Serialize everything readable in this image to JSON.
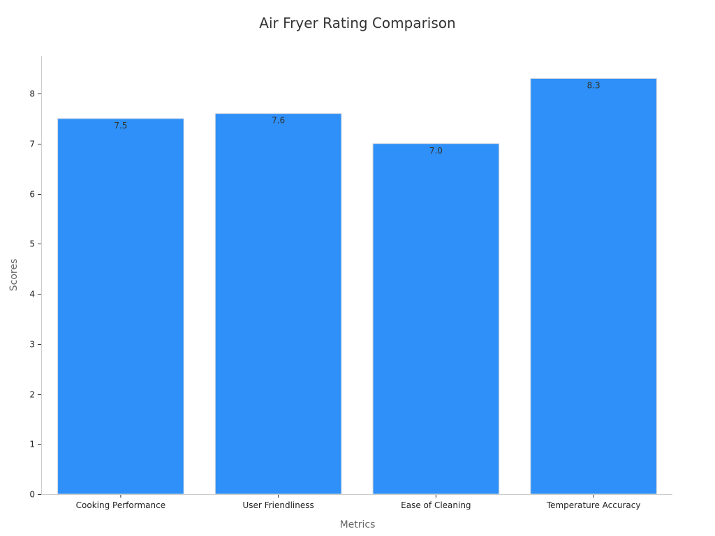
{
  "chart_data": {
    "type": "bar",
    "title": "Air Fryer Rating Comparison",
    "xlabel": "Metrics",
    "ylabel": "Scores",
    "categories": [
      "Cooking Performance",
      "User Friendliness",
      "Ease of Cleaning",
      "Temperature Accuracy"
    ],
    "values": [
      7.5,
      7.6,
      7.0,
      8.3
    ],
    "value_labels": [
      "7.5",
      "7.6",
      "7.0",
      "8.3"
    ],
    "ylim": [
      0,
      8.75
    ],
    "yticks": [
      0,
      1,
      2,
      3,
      4,
      5,
      6,
      7,
      8
    ],
    "bar_color": "#2e90f8",
    "grid": false,
    "legend": "none"
  }
}
